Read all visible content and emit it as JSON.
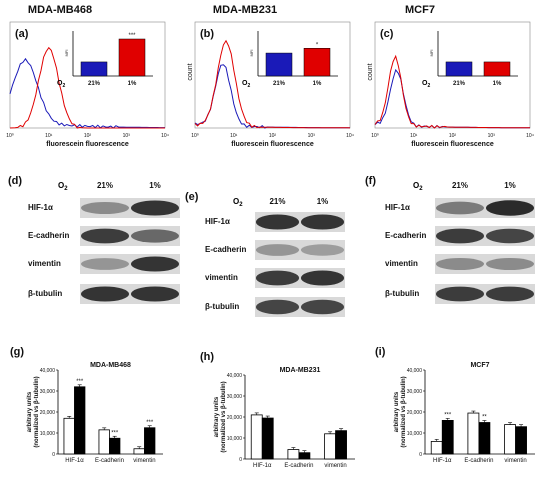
{
  "cell_lines": [
    "MDA-MB468",
    "MDA-MB231",
    "MCF7"
  ],
  "flow_panels": [
    {
      "letter": "(a)",
      "ylabel": "",
      "xlabel": "fluorescein fluorescence",
      "inset": {
        "ylabel": "MFI",
        "o2_label": "O2",
        "categories": [
          "21%",
          "1%"
        ],
        "values": [
          0.38,
          1.0
        ],
        "sig": "***",
        "colors": [
          "#1a1ab8",
          "#e00000"
        ]
      }
    },
    {
      "letter": "(b)",
      "ylabel": "count",
      "xlabel": "fluorescein fluorescence",
      "inset": {
        "ylabel": "MFI",
        "o2_label": "O2",
        "categories": [
          "21%",
          "1%"
        ],
        "values": [
          0.62,
          0.75
        ],
        "sig": "*",
        "colors": [
          "#1a1ab8",
          "#e00000"
        ]
      }
    },
    {
      "letter": "(c)",
      "ylabel": "count",
      "xlabel": "fluorescein fluorescence",
      "inset": {
        "ylabel": "MFI",
        "o2_label": "O2",
        "categories": [
          "21%",
          "1%"
        ],
        "values": [
          0.38,
          0.38
        ],
        "sig": "",
        "colors": [
          "#1a1ab8",
          "#e00000"
        ]
      }
    }
  ],
  "flow_ticks": [
    "10⁰",
    "10¹",
    "10²",
    "10³",
    "10⁴"
  ],
  "blot_panels": [
    {
      "letter": "(d)",
      "o2_label": "O2",
      "conditions": [
        "21%",
        "1%"
      ],
      "rows": [
        {
          "label": "HIF-1α",
          "left": 0.35,
          "right": 0.85
        },
        {
          "label": "E-cadherin",
          "left": 0.8,
          "right": 0.55
        },
        {
          "label": "vimentin",
          "left": 0.3,
          "right": 0.85
        },
        {
          "label": "β-tubulin",
          "left": 0.85,
          "right": 0.85
        }
      ]
    },
    {
      "letter": "(e)",
      "o2_label": "O2",
      "conditions": [
        "21%",
        "1%"
      ],
      "rows": [
        {
          "label": "HIF-1α",
          "left": 0.85,
          "right": 0.85
        },
        {
          "label": "E-cadherin",
          "left": 0.3,
          "right": 0.25
        },
        {
          "label": "vimentin",
          "left": 0.8,
          "right": 0.85
        },
        {
          "label": "β-tubulin",
          "left": 0.75,
          "right": 0.75
        }
      ]
    },
    {
      "letter": "(f)",
      "o2_label": "O2",
      "conditions": [
        "21%",
        "1%"
      ],
      "rows": [
        {
          "label": "HIF-1α",
          "left": 0.45,
          "right": 0.9
        },
        {
          "label": "E-cadherin",
          "left": 0.8,
          "right": 0.75
        },
        {
          "label": "vimentin",
          "left": 0.35,
          "right": 0.35
        },
        {
          "label": "β-tubulin",
          "left": 0.8,
          "right": 0.8
        }
      ]
    }
  ],
  "chart_data": [
    {
      "type": "bar",
      "panel": "(g)",
      "title": "MDA-MB468",
      "ylabel": "arbitrary units\n(normalized vs β-tubulin)",
      "categories": [
        "HIF-1α",
        "E-cadherin",
        "vimentin"
      ],
      "series": [
        {
          "values": [
            17000,
            11500,
            2500
          ],
          "fill": "#ffffff"
        },
        {
          "values": [
            32000,
            7500,
            12500
          ],
          "fill": "#000000"
        }
      ],
      "sig": [
        "***",
        "***",
        "***"
      ],
      "ylim": [
        0,
        40000
      ],
      "yticks": [
        "0",
        "10,000",
        "20,000",
        "30,000",
        "40,000"
      ]
    },
    {
      "type": "bar",
      "panel": "(h)",
      "title": "MDA-MB231",
      "ylabel": "arbitrary units\n(normalized vs β-tubulin)",
      "categories": [
        "HIF-1α",
        "E-cadherin",
        "vimentin"
      ],
      "series": [
        {
          "values": [
            21000,
            4500,
            12000
          ],
          "fill": "#ffffff"
        },
        {
          "values": [
            19500,
            3000,
            13500
          ],
          "fill": "#000000"
        }
      ],
      "sig": [
        "",
        "",
        ""
      ],
      "ylim": [
        0,
        40000
      ],
      "yticks": [
        "0",
        "10,000",
        "20,000",
        "30,000",
        "40,000"
      ]
    },
    {
      "type": "bar",
      "panel": "(i)",
      "title": "MCF7",
      "ylabel": "arbitrary units\n(normalized vs β-tubulin)",
      "categories": [
        "HIF-1α",
        "E-cadherin",
        "vimentin"
      ],
      "series": [
        {
          "values": [
            6000,
            19500,
            14000
          ],
          "fill": "#ffffff"
        },
        {
          "values": [
            16000,
            15000,
            13000
          ],
          "fill": "#000000"
        }
      ],
      "sig": [
        "***",
        "**",
        ""
      ],
      "ylim": [
        0,
        40000
      ],
      "yticks": [
        "0",
        "10,000",
        "20,000",
        "30,000",
        "40,000"
      ]
    }
  ]
}
